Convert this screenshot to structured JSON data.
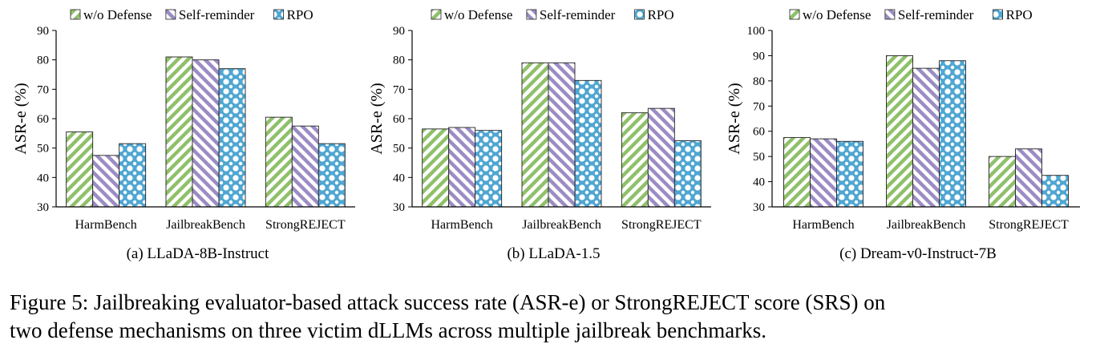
{
  "chart_data": [
    {
      "type": "bar",
      "subtitle": "(a) LLaDA-8B-Instruct",
      "ylabel": "ASR-e (%)",
      "ylim": [
        30,
        90
      ],
      "yticks": [
        "30",
        "40",
        "50",
        "60",
        "70",
        "80",
        "90"
      ],
      "categories": [
        "HarmBench",
        "JailbreakBench",
        "StrongREJECT"
      ],
      "series": [
        {
          "name": "w/o Defense",
          "values": [
            55.5,
            81,
            60.5
          ]
        },
        {
          "name": "Self-reminder",
          "values": [
            47.5,
            80,
            57.5
          ]
        },
        {
          "name": "RPO",
          "values": [
            51.5,
            77,
            51.5
          ]
        }
      ]
    },
    {
      "type": "bar",
      "subtitle": "(b) LLaDA-1.5",
      "ylabel": "ASR-e (%)",
      "ylim": [
        30,
        90
      ],
      "yticks": [
        "30",
        "40",
        "50",
        "60",
        "70",
        "80",
        "90"
      ],
      "categories": [
        "HarmBench",
        "JailbreakBench",
        "StrongREJECT"
      ],
      "series": [
        {
          "name": "w/o Defense",
          "values": [
            56.5,
            79,
            62
          ]
        },
        {
          "name": "Self-reminder",
          "values": [
            57,
            79,
            63.5
          ]
        },
        {
          "name": "RPO",
          "values": [
            56,
            73,
            52.5
          ]
        }
      ]
    },
    {
      "type": "bar",
      "subtitle": "(c) Dream-v0-Instruct-7B",
      "ylabel": "ASR-e (%)",
      "ylim": [
        30,
        100
      ],
      "yticks": [
        "30",
        "40",
        "50",
        "60",
        "70",
        "80",
        "90",
        "100"
      ],
      "categories": [
        "HarmBench",
        "JailbreakBench",
        "StrongREJECT"
      ],
      "series": [
        {
          "name": "w/o Defense",
          "values": [
            57.5,
            90,
            50
          ]
        },
        {
          "name": "Self-reminder",
          "values": [
            57,
            85,
            53
          ]
        },
        {
          "name": "RPO",
          "values": [
            56,
            88,
            42.5
          ]
        }
      ]
    }
  ],
  "series_colors": {
    "w/o Defense": "#8fc06a",
    "Self-reminder": "#9c8cc4",
    "RPO": "#4fa6d2"
  },
  "caption": {
    "line1": "Figure 5: Jailbreaking evaluator-based attack success rate (ASR-e) or StrongREJECT score (SRS) on",
    "line2": "two defense mechanisms on three victim dLLMs across multiple jailbreak benchmarks."
  }
}
